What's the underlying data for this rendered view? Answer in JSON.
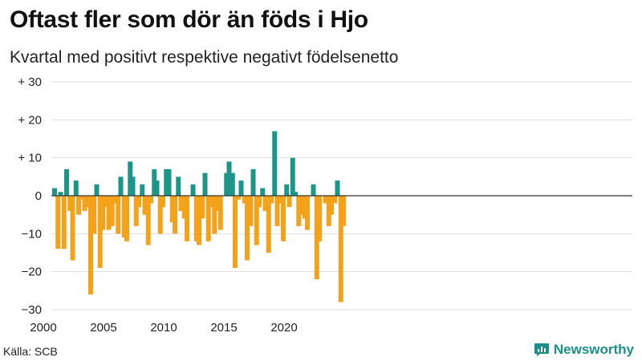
{
  "title": "Oftast fler som dör än föds i Hjo",
  "subtitle": "Kvartal med positivt respektive negativt födelsenetto",
  "source": "Källa: SCB",
  "brand": {
    "name": "Newsworthy",
    "icon": "newsworthy-logo-icon"
  },
  "colors": {
    "positive": "#1b9688",
    "negative": "#f5a21b",
    "grid": "#dddddd",
    "axis": "#333333"
  },
  "chart_data": {
    "type": "bar",
    "x_start_year": 2000,
    "x_step": "quarter",
    "xticks": [
      2000,
      2005,
      2010,
      2015,
      2020
    ],
    "yticks": [
      30,
      20,
      10,
      0,
      -10,
      -20,
      -30
    ],
    "ytick_labels": [
      "+ 30",
      "+ 20",
      "+ 10",
      "0",
      "−10",
      "−20",
      "−30"
    ],
    "ylim": [
      -30,
      30
    ],
    "grid": true,
    "values": [
      2,
      -14,
      1,
      -14,
      7,
      -4,
      -17,
      4,
      -5,
      -1,
      -4,
      -3,
      -26,
      -10,
      3,
      -19,
      -9,
      -3,
      -9,
      -8,
      -2,
      -10,
      5,
      -11,
      -12,
      9,
      5,
      -8,
      -3,
      3,
      -5,
      -13,
      -2,
      7,
      4,
      -10,
      -3,
      7,
      7,
      -7,
      -10,
      5,
      -4,
      -6,
      -12,
      0,
      3,
      -12,
      -13,
      -6,
      6,
      -12,
      -3,
      -10,
      -4,
      -9,
      0,
      6,
      9,
      6,
      -19,
      -1,
      4,
      -2,
      -17,
      -8,
      7,
      -13,
      -3,
      2,
      -4,
      -15,
      -2,
      17,
      -8,
      -2,
      -12,
      3,
      -3,
      10,
      1,
      -8,
      -5,
      -6,
      -9,
      0,
      3,
      -22,
      -12,
      0,
      -2,
      -8,
      -5,
      -2,
      4,
      -28,
      -8
    ]
  }
}
